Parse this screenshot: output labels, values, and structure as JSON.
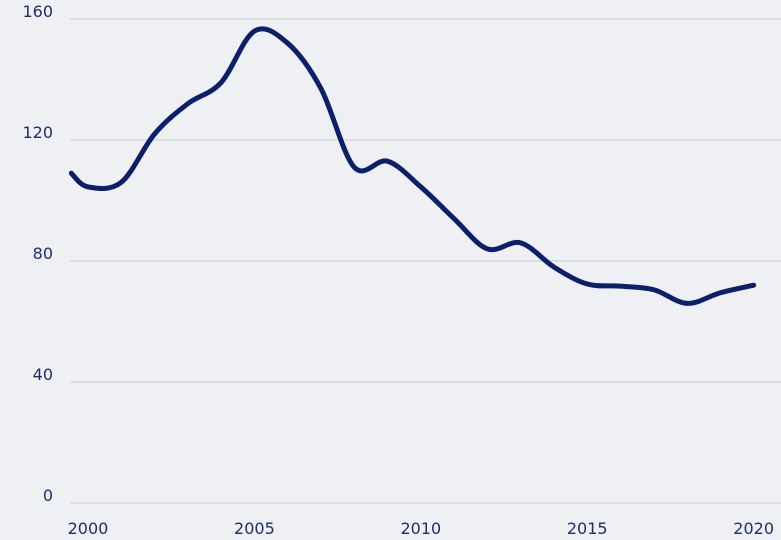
{
  "chart_data": {
    "type": "line",
    "x": [
      1999.5,
      2000,
      2001,
      2002,
      2003,
      2004,
      2005,
      2006,
      2007,
      2008,
      2009,
      2010,
      2011,
      2012,
      2013,
      2014,
      2015,
      2016,
      2017,
      2018,
      2019,
      2020
    ],
    "series": [
      {
        "color": "#0c1f6b",
        "values": [
          109,
          104.5,
          106,
          122,
          132,
          139,
          156,
          152,
          137,
          111,
          113,
          104.5,
          94,
          84,
          86,
          78,
          72.4,
          71.7,
          70.5,
          66,
          69.5,
          72
        ]
      }
    ],
    "xlim": [
      1999.46,
      2020.1
    ],
    "xticks": [
      2000,
      2005,
      2010,
      2015,
      2020
    ],
    "ylim": [
      0,
      160
    ],
    "yticks": [
      0,
      40,
      80,
      120,
      160
    ],
    "grid": true
  }
}
